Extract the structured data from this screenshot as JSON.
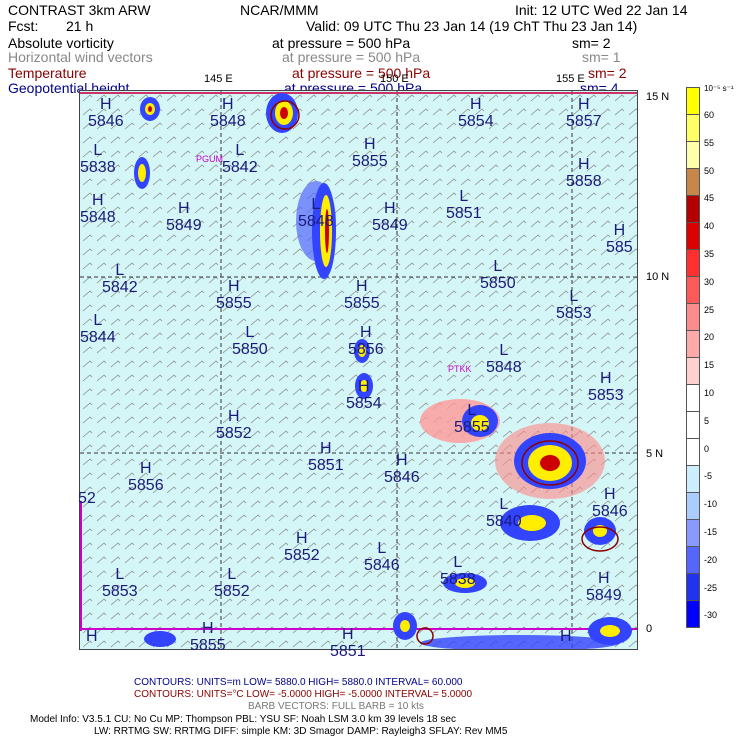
{
  "header": {
    "product": "CONTRAST  3km ARW",
    "org": "NCAR/MMM",
    "init": "Init: 12 UTC Wed 22 Jan 14",
    "fcst_label": "Fcst:",
    "fcst_value": "21 h",
    "valid": "Valid: 09 UTC Thu 23 Jan 14 (19 ChT Thu 23 Jan 14)"
  },
  "fields": [
    {
      "name": "Absolute vorticity",
      "pressure": "at pressure =  500 hPa",
      "sm": "sm= 2",
      "color": "#000000"
    },
    {
      "name": "Horizontal wind vectors",
      "pressure": "at pressure =  500 hPa",
      "sm": "sm= 1",
      "color": "#888888"
    },
    {
      "name": "Temperature",
      "pressure": "at pressure =  500 hPa",
      "sm": "sm= 2",
      "color": "#8b0000"
    },
    {
      "name": "Geopotential height",
      "pressure": "at pressure =  500 hPa",
      "sm": "sm= 4",
      "color": "#00008b"
    }
  ],
  "map": {
    "lon_labels": [
      "145 E",
      "150 E",
      "155 E"
    ],
    "lat_labels": [
      "15 N",
      "10 N",
      "5 N",
      "0"
    ],
    "stations": [
      "PGUM",
      "PTKK"
    ],
    "highs_lows": [
      {
        "t": "H",
        "v": "5846"
      },
      {
        "t": "H",
        "v": "5848"
      },
      {
        "t": "H",
        "v": "5854"
      },
      {
        "t": "H",
        "v": "5857"
      },
      {
        "t": "L",
        "v": "5838"
      },
      {
        "t": "L",
        "v": "5842"
      },
      {
        "t": "H",
        "v": "5855"
      },
      {
        "t": "H",
        "v": "5858"
      },
      {
        "t": "H",
        "v": "5848"
      },
      {
        "t": "H",
        "v": "5849"
      },
      {
        "t": "L",
        "v": "5848"
      },
      {
        "t": "H",
        "v": "5849"
      },
      {
        "t": "L",
        "v": "5851"
      },
      {
        "t": "H",
        "v": "585"
      },
      {
        "t": "L",
        "v": "5842"
      },
      {
        "t": "L",
        "v": "5850"
      },
      {
        "t": "H",
        "v": "5855"
      },
      {
        "t": "H",
        "v": "5855"
      },
      {
        "t": "L",
        "v": "5853"
      },
      {
        "t": "L",
        "v": "5844"
      },
      {
        "t": "L",
        "v": "5850"
      },
      {
        "t": "H",
        "v": "5856"
      },
      {
        "t": "L",
        "v": "5848"
      },
      {
        "t": "H",
        "v": "5853"
      },
      {
        "t": "H",
        "v": "5854"
      },
      {
        "t": "H",
        "v": "5852"
      },
      {
        "t": "L",
        "v": "5855"
      },
      {
        "t": "H",
        "v": "5851"
      },
      {
        "t": "H",
        "v": "5846"
      },
      {
        "t": "H",
        "v": "5856"
      },
      {
        "t": "",
        "v": "52"
      },
      {
        "t": "L",
        "v": "5840"
      },
      {
        "t": "H",
        "v": "5846"
      },
      {
        "t": "H",
        "v": "5852"
      },
      {
        "t": "L",
        "v": "5846"
      },
      {
        "t": "L",
        "v": "5838"
      },
      {
        "t": "L",
        "v": "5853"
      },
      {
        "t": "L",
        "v": "5852"
      },
      {
        "t": "H",
        "v": "5849"
      },
      {
        "t": "H",
        "v": ""
      },
      {
        "t": "H",
        "v": "5855"
      },
      {
        "t": "H",
        "v": "5851"
      },
      {
        "t": "H",
        "v": ""
      }
    ]
  },
  "colorbar": {
    "unit": "10⁻⁵ s⁻¹",
    "labels": [
      "60",
      "55",
      "50",
      "45",
      "40",
      "35",
      "30",
      "25",
      "20",
      "15",
      "10",
      "5",
      "0",
      "-5",
      "-10",
      "-15",
      "-20",
      "-25",
      "-30"
    ],
    "colors": [
      "#ffff00",
      "#ffff66",
      "#ffffaa",
      "#c8864a",
      "#b40000",
      "#dc0000",
      "#ff3030",
      "#ff5a5a",
      "#ff8c8c",
      "#ffaaaa",
      "#ffd0d0",
      "#ffffff",
      "#ffffff",
      "#ffffff",
      "#cceeff",
      "#aaccff",
      "#8899ff",
      "#5566ff",
      "#2233ee",
      "#0000ff"
    ]
  },
  "footer": {
    "c1_label": "CONTOURS:  UNITS=m  LOW=   5880.0     HIGH=  5880.0     INTERVAL=   60.000",
    "c2_label": "CONTOURS:  UNITS=°C  LOW= -5.0000     HIGH= -5.0000     INTERVAL=    5.0000",
    "barb": "BARB VECTORS:  FULL BARB = 10 kts",
    "model1": "Model Info: V3.5.1     CU: No Cu     MP: Thompson     PBL: YSU     SF: Noah LSM     3.0 km   39 levels    18 sec",
    "model2": "LW: RRTMG    SW: RRTMG   DIFF: simple KM: 3D Smagor DAMP: Rayleigh3   SFLAY: Rev MM5"
  }
}
